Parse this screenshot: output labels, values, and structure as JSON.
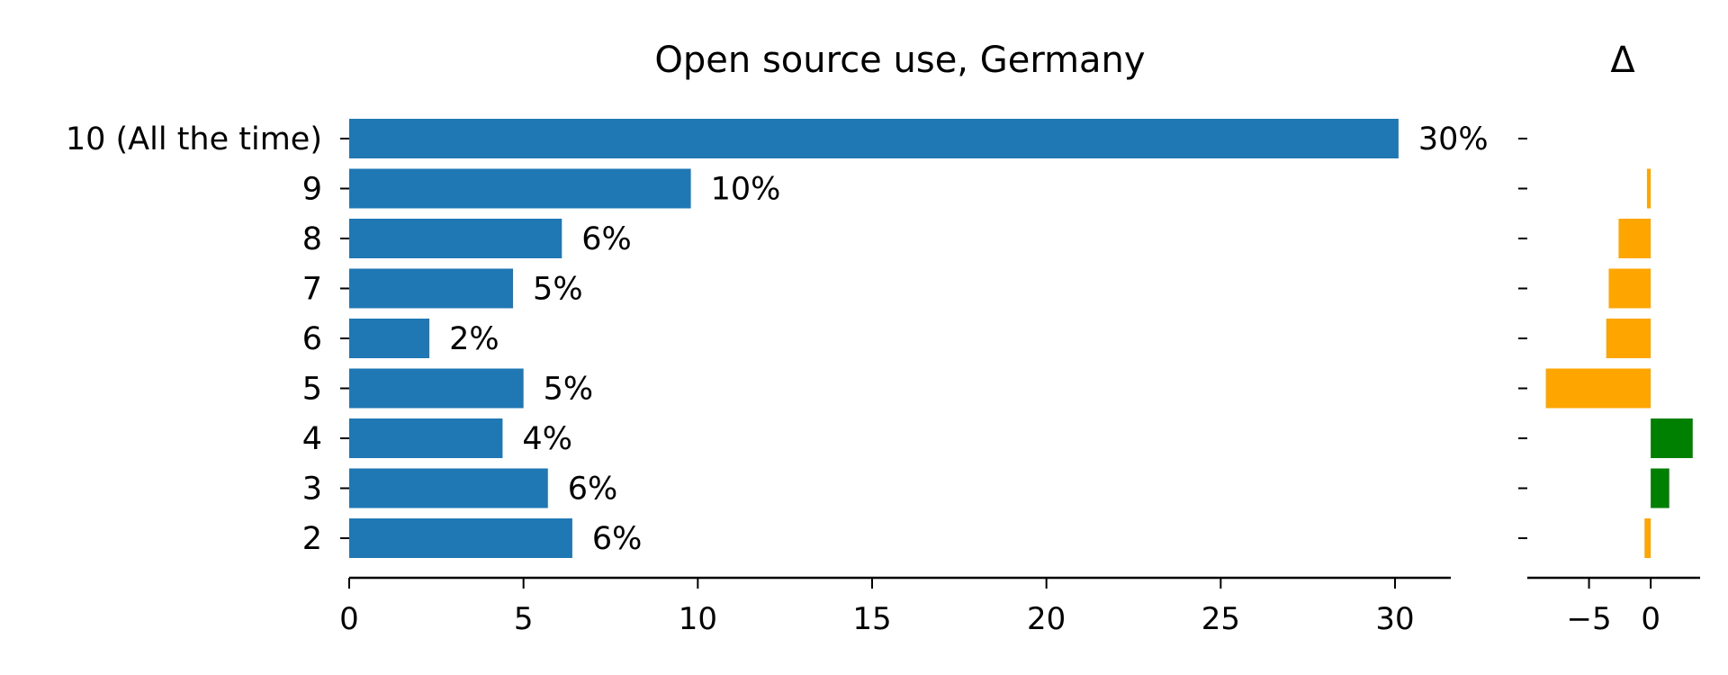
{
  "chart_data": [
    {
      "type": "bar",
      "orientation": "horizontal",
      "title": "Open source use, Germany",
      "categories": [
        "10 (All the time)",
        "9",
        "8",
        "7",
        "6",
        "5",
        "4",
        "3",
        "2"
      ],
      "values": [
        30.1,
        9.8,
        6.1,
        4.7,
        2.3,
        5.0,
        4.4,
        5.7,
        6.4
      ],
      "value_labels": [
        "30%",
        "10%",
        "6%",
        "5%",
        "2%",
        "5%",
        "4%",
        "6%",
        "6%"
      ],
      "xlim": [
        0,
        31.6
      ],
      "xticks": [
        0,
        5,
        10,
        15,
        20,
        25,
        30
      ],
      "grid": false,
      "color": "#1f77b4"
    },
    {
      "type": "bar",
      "orientation": "horizontal",
      "title": "Δ",
      "categories": [
        "10 (All the time)",
        "9",
        "8",
        "7",
        "6",
        "5",
        "4",
        "3",
        "2"
      ],
      "values": [
        0.0,
        -0.3,
        -2.6,
        -3.4,
        -3.6,
        -8.5,
        3.4,
        1.5,
        -0.5
      ],
      "xlim": [
        -10,
        4
      ],
      "xticks": [
        -5,
        0
      ],
      "xtick_labels": [
        "−5",
        "0"
      ],
      "grid": false,
      "positive_color": "#008000",
      "negative_color": "#ffa500"
    }
  ]
}
